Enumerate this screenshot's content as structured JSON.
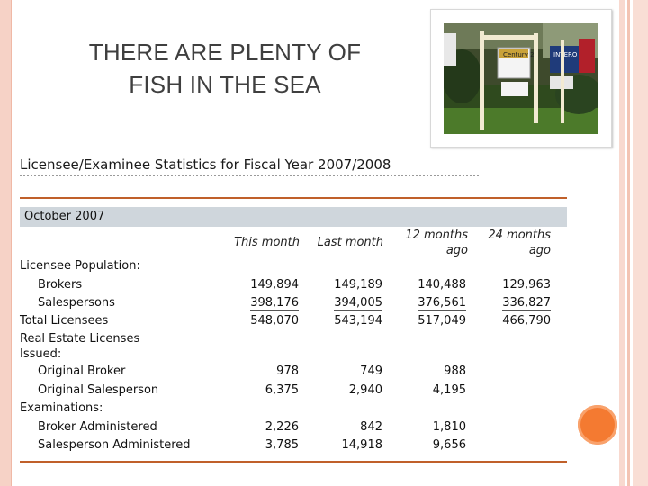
{
  "slide": {
    "title": "THERE ARE PLENTY OF FISH IN THE SEA"
  },
  "table": {
    "heading": "Licensee/Examinee Statistics for Fiscal Year 2007/2008",
    "period": "October 2007",
    "columns": {
      "this_month": "This month",
      "last_month": "Last month",
      "months12_line1": "12 months",
      "months12_line2": "ago",
      "months24_line1": "24 months",
      "months24_line2": "ago"
    },
    "sections": {
      "licensee_population": "Licensee Population:",
      "real_estate_line1": "Real Estate Licenses",
      "real_estate_line2": "Issued:",
      "examinations": "Examinations:"
    },
    "rows": [
      {
        "label": "Brokers",
        "values": [
          "149,894",
          "149,189",
          "140,488",
          "129,963"
        ]
      },
      {
        "label": "Salespersons",
        "values": [
          "398,176",
          "394,005",
          "376,561",
          "336,827"
        ]
      },
      {
        "label": "Total Licensees",
        "values": [
          "548,070",
          "543,194",
          "517,049",
          "466,790"
        ]
      },
      {
        "label": "Original Broker",
        "values": [
          "978",
          "749",
          "988",
          ""
        ]
      },
      {
        "label": "Original Salesperson",
        "values": [
          "6,375",
          "2,940",
          "4,195",
          ""
        ]
      },
      {
        "label": "Broker Administered",
        "values": [
          "2,226",
          "842",
          "1,810",
          ""
        ]
      },
      {
        "label": "Salesperson Administered",
        "values": [
          "3,785",
          "14,918",
          "9,656",
          ""
        ]
      }
    ]
  },
  "photo": {
    "sign_texts": [
      "Century 21",
      "INTERO"
    ]
  },
  "colors": {
    "accent_orange": "#c0602a",
    "circle_orange": "#f47a31",
    "band_gray": "#cfd6dc",
    "border_pink": "#f6d2c6"
  }
}
